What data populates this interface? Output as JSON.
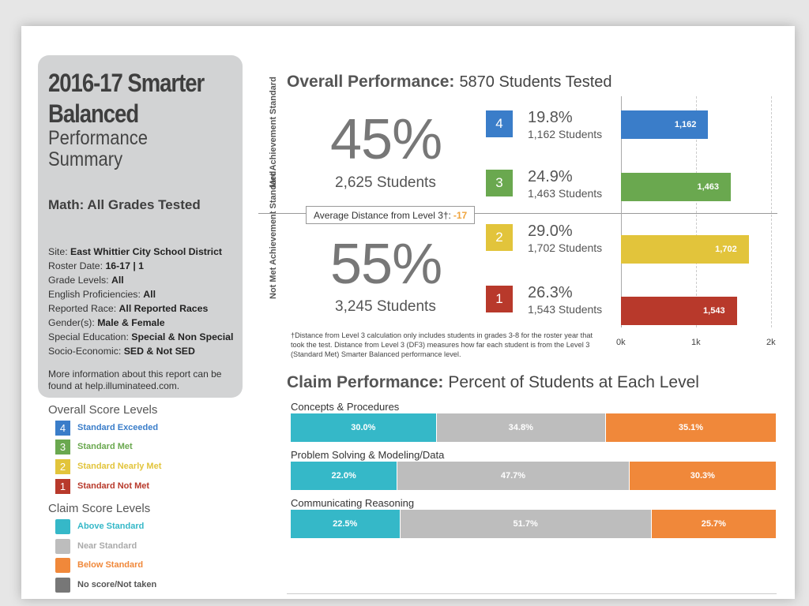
{
  "report": {
    "title_bold": "2016-17 Smarter Balanced",
    "title_light": "Performance Summary",
    "subject": "Math: All Grades Tested",
    "meta": [
      {
        "label": "Site: ",
        "value": "East Whittier City School District"
      },
      {
        "label": "Roster Date: ",
        "value": "16-17 | 1"
      },
      {
        "label": "Grade Levels: ",
        "value": "All"
      },
      {
        "label": "English Proficiencies: ",
        "value": "All"
      },
      {
        "label": "Reported Race: ",
        "value": "All Reported Races"
      },
      {
        "label": "Gender(s): ",
        "value": "Male & Female"
      },
      {
        "label": "Special Education: ",
        "value": "Special & Non Special"
      },
      {
        "label": "Socio-Economic: ",
        "value": "SED & Not SED"
      }
    ],
    "more_info": "More information about this report can be found at help.illuminateed.com."
  },
  "legend_overall": {
    "title": "Overall Score Levels",
    "items": [
      {
        "num": "4",
        "label": "Standard Exceeded",
        "color": "#3a7dc9"
      },
      {
        "num": "3",
        "label": "Standard Met",
        "color": "#6aa84f"
      },
      {
        "num": "2",
        "label": "Standard Nearly Met",
        "color": "#e2c43b"
      },
      {
        "num": "1",
        "label": "Standard Not Met",
        "color": "#b8392b"
      }
    ]
  },
  "legend_claim": {
    "title": "Claim Score Levels",
    "items": [
      {
        "label": "Above Standard",
        "color": "#35b8c8",
        "text_color": "#35b8c8"
      },
      {
        "label": "Near Standard",
        "color": "#bdbdbd",
        "text_color": "#aaaaaa"
      },
      {
        "label": "Below Standard",
        "color": "#f0883a",
        "text_color": "#f0883a"
      },
      {
        "label": "No score/Not taken",
        "color": "#777777",
        "text_color": "#555555"
      }
    ]
  },
  "overall": {
    "heading": "Overall Performance:",
    "students_tested": "5870 Students Tested",
    "met_label": "Met Achievement Standard",
    "not_met_label": "Not Met Achievement Standard",
    "met_pct": "45%",
    "met_students": "2,625 Students",
    "not_met_pct": "55%",
    "not_met_students": "3,245 Students",
    "avg_distance_label": "Average Distance from Level 3†:",
    "avg_distance_value": "-17",
    "footnote": "†Distance from Level 3 calculation only includes students in grades 3-8 for the roster year that took the test. Distance from Level 3 (DF3) measures how far each student is from the Level 3 (Standard Met) Smarter Balanced performance level.",
    "levels": [
      {
        "num": "4",
        "pct": "19.8%",
        "students": "1,162 Students"
      },
      {
        "num": "3",
        "pct": "24.9%",
        "students": "1,463 Students"
      },
      {
        "num": "2",
        "pct": "29.0%",
        "students": "1,702 Students"
      },
      {
        "num": "1",
        "pct": "26.3%",
        "students": "1,543 Students"
      }
    ]
  },
  "chart_data": [
    {
      "type": "bar",
      "orientation": "horizontal",
      "categories": [
        "4",
        "3",
        "2",
        "1"
      ],
      "values": [
        1162,
        1463,
        1702,
        1543
      ],
      "value_labels": [
        "1,162",
        "1,463",
        "1,702",
        "1,543"
      ],
      "colors": [
        "#3a7dc9",
        "#6aa84f",
        "#e2c43b",
        "#b8392b"
      ],
      "xlim": [
        0,
        2000
      ],
      "ticks": [
        "0k",
        "1k",
        "2k"
      ],
      "title": "Overall Performance:"
    },
    {
      "type": "bar",
      "stacked": true,
      "orientation": "horizontal",
      "title": "Claim Performance:",
      "subtitle": "Percent of Students at Each Level",
      "series_colors": [
        "#35b8c8",
        "#bdbdbd",
        "#f0883a"
      ],
      "claims": [
        {
          "name": "Concepts & Procedures",
          "values": [
            30.0,
            34.8,
            35.1
          ],
          "labels": [
            "30.0%",
            "34.8%",
            "35.1%"
          ]
        },
        {
          "name": "Problem Solving & Modeling/Data",
          "values": [
            22.0,
            47.7,
            30.3
          ],
          "labels": [
            "22.0%",
            "47.7%",
            "30.3%"
          ]
        },
        {
          "name": "Communicating Reasoning",
          "values": [
            22.5,
            51.7,
            25.7
          ],
          "labels": [
            "22.5%",
            "51.7%",
            "25.7%"
          ]
        }
      ]
    }
  ],
  "claim": {
    "heading": "Claim Performance:",
    "subheading": "Percent of Students at Each Level"
  }
}
